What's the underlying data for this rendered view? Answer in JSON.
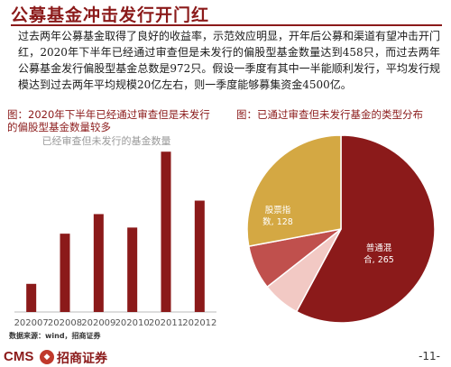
{
  "page": {
    "title": "公募基金冲击发行开门红",
    "paragraph": "过去两年公募基金取得了良好的收益率，示范效应明显，开年后公募和渠道有望冲击开门红，2020年下半年已经通过审查但是未发行的偏股型基金数量达到458只，而过去两年公募基金发行偏股型基金总数是972只。假设一季度有其中一半能顺利发行，平均发行规模达到过去两年平均规模20亿左右，则一季度能够募集资金4500亿。",
    "source": "数据来源：wind，招商证券",
    "page_number": "-11-",
    "logo_text": "CMS",
    "company": "招商证券"
  },
  "left_panel": {
    "title": "图：2020年下半年已经通过审查但是未发行的偏股型基金数量较多"
  },
  "right_panel": {
    "title": "图：已通过审查但未发行基金的类型分布"
  },
  "chart_data": [
    {
      "type": "bar",
      "title": "已经审查但未发行的基金数量",
      "categories": [
        "202007",
        "202008",
        "202009",
        "202010",
        "202011",
        "202012"
      ],
      "values": [
        23,
        64,
        80,
        69,
        131,
        91
      ],
      "ylim": [
        0,
        140
      ],
      "grid": false,
      "colors": {
        "bar": "#8B1A1A"
      }
    },
    {
      "type": "pie",
      "slices": [
        {
          "label": "普通混合",
          "display_label": "普通混\n合, 265",
          "value": 265,
          "color": "#8B1A1A"
        },
        {
          "label": "偏股混合",
          "display_label": "偏股混\n合, 30",
          "value": 30,
          "color": "#F2C9C4"
        },
        {
          "label": "股票型",
          "display_label": "股票型,\n35",
          "value": 35,
          "color": "#C0504D"
        },
        {
          "label": "股票指数",
          "display_label": "股票指\n数, 128",
          "value": 128,
          "color": "#D4A843"
        }
      ]
    }
  ]
}
